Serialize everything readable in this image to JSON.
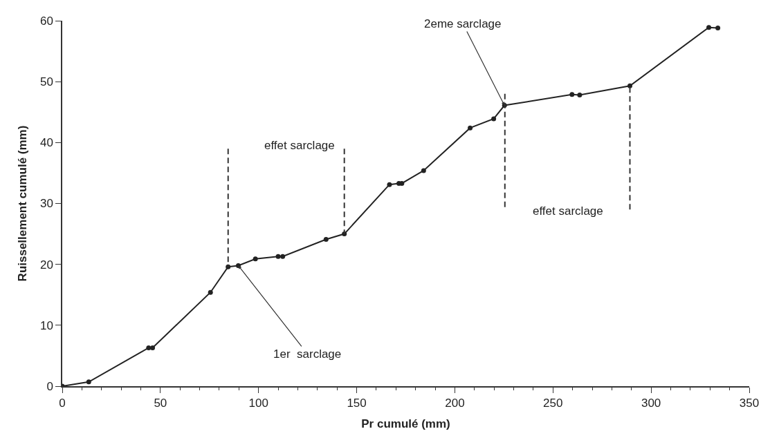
{
  "chart_data": {
    "type": "line",
    "xlabel": "Pr cumulé (mm)",
    "ylabel": "Ruissellement cumulé (mm)",
    "x": [
      0,
      13.5,
      44,
      46,
      75.5,
      84.5,
      89.7,
      98.4,
      110,
      112.3,
      134.4,
      143.7,
      166.7,
      171.5,
      173,
      184.1,
      207.8,
      219.8,
      225.3,
      259.7,
      263.6,
      289.2,
      329.4,
      334
    ],
    "series": [
      {
        "color": "#222222",
        "values": [
          0,
          0.7,
          6.3,
          6.3,
          15.4,
          19.6,
          19.8,
          20.9,
          21.3,
          21.3,
          24.1,
          25.0,
          33.1,
          33.3,
          33.3,
          35.4,
          42.4,
          43.9,
          46.1,
          47.9,
          47.8,
          49.3,
          58.9,
          58.8
        ]
      },
      {
        "color": "#333333",
        "x": [
          84.5,
          84.5
        ],
        "values": [
          39,
          19.6
        ],
        "marker": "none",
        "line_style": "dashed"
      },
      {
        "color": "#333333",
        "x": [
          143.7,
          143.7
        ],
        "values": [
          39,
          25
        ],
        "marker": "none",
        "line_style": "dashed"
      },
      {
        "color": "#333333",
        "x": [
          225.5,
          225.5
        ],
        "values": [
          48,
          29
        ],
        "marker": "none",
        "line_style": "dashed"
      },
      {
        "color": "#333333",
        "x": [
          289.2,
          289.2
        ],
        "values": [
          29,
          49.3
        ],
        "marker": "none",
        "line_style": "dashed"
      }
    ],
    "xlim": [
      0,
      350
    ],
    "ylim": [
      0,
      60
    ],
    "xticks": [
      0,
      {
        "value": 10,
        "label": null
      },
      {
        "value": 20,
        "label": null
      },
      {
        "value": 30,
        "label": null
      },
      {
        "value": 40,
        "label": null
      },
      50,
      {
        "value": 60,
        "label": null
      },
      {
        "value": 70,
        "label": null
      },
      {
        "value": 80,
        "label": null
      },
      {
        "value": 90,
        "label": null
      },
      100,
      {
        "value": 110,
        "label": null
      },
      {
        "value": 120,
        "label": null
      },
      {
        "value": 130,
        "label": null
      },
      {
        "value": 140,
        "label": null
      },
      150,
      {
        "value": 160,
        "label": null
      },
      {
        "value": 170,
        "label": null
      },
      {
        "value": 180,
        "label": null
      },
      {
        "value": 190,
        "label": null
      },
      200,
      {
        "value": 210,
        "label": null
      },
      {
        "value": 220,
        "label": null
      },
      {
        "value": 230,
        "label": null
      },
      {
        "value": 240,
        "label": null
      },
      250,
      {
        "value": 260,
        "label": null
      },
      {
        "value": 270,
        "label": null
      },
      {
        "value": 280,
        "label": null
      },
      {
        "value": 290,
        "label": null
      },
      300,
      {
        "value": 310,
        "label": null
      },
      {
        "value": 320,
        "label": null
      },
      {
        "value": 330,
        "label": null
      },
      {
        "value": 340,
        "label": null
      },
      350
    ],
    "yticks": [
      0,
      10,
      20,
      30,
      40,
      50,
      60
    ],
    "marker": "circle",
    "line_style": "solid",
    "annotations": [
      "effet sarclage",
      "effet sarclage",
      {
        "text": "1er  sarclage",
        "x": 89.7,
        "y": 19.8
      },
      {
        "text": "2eme sarclage",
        "x": 225.3,
        "y": 46.1
      }
    ]
  }
}
